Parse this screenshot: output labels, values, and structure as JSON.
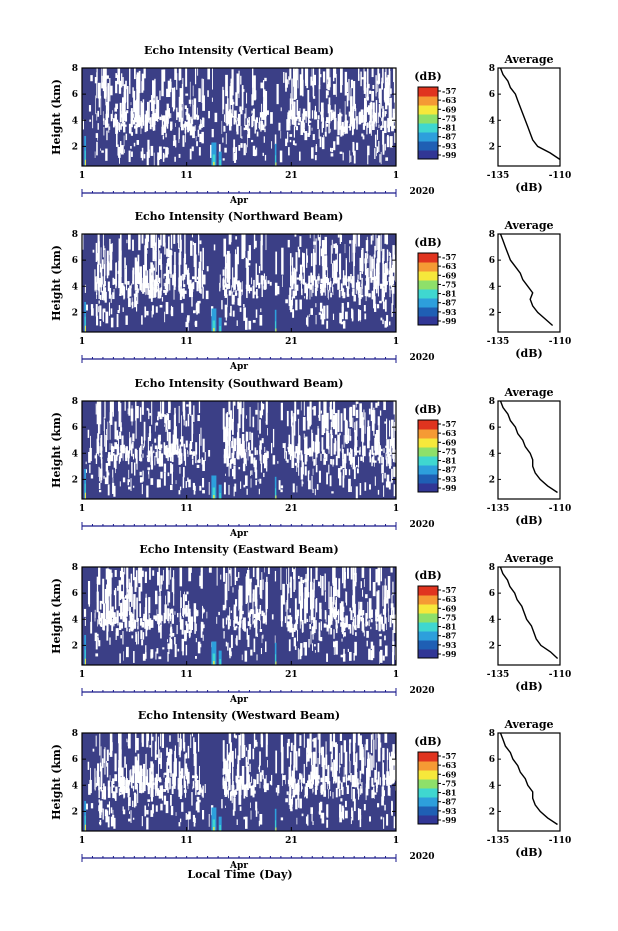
{
  "figure": {
    "xlabel": "Local Time (Day)",
    "x_ticks": [
      "1",
      "11",
      "21",
      "1"
    ],
    "month_label": "Apr",
    "year_label": "2020",
    "y_ticks": [
      "2",
      "4",
      "6",
      "8"
    ],
    "ylabel": "Height (km)",
    "colorbar_unit": "(dB)",
    "colorbar_ticks": [
      "-57",
      "-63",
      "-69",
      "-75",
      "-81",
      "-87",
      "-93",
      "-99"
    ],
    "colorbar_colors": [
      "#313695",
      "#1f5fb4",
      "#2d9fdc",
      "#3fd7d0",
      "#8ee06a",
      "#f6e83b",
      "#f59a34",
      "#e0341f"
    ],
    "background_color": "#3b3f86",
    "avg_title": "Average",
    "avg_xticks": [
      "-135",
      "-110"
    ],
    "avg_xlabel": "(dB)"
  },
  "chart_data": [
    {
      "type": "heatmap",
      "title": "Echo Intensity (Vertical Beam)",
      "ylabel": "Height (km)",
      "ylim": [
        0.5,
        8
      ],
      "xlim_days": [
        1,
        31
      ],
      "clim": [
        -99,
        -57
      ],
      "average_profile": {
        "type": "line",
        "title": "Average",
        "xlabel": "(dB)",
        "xlim": [
          -135,
          -110
        ],
        "ylim": [
          0.5,
          8
        ],
        "heights_km": [
          1,
          1.5,
          2,
          2.5,
          3,
          3.5,
          4,
          4.5,
          5,
          5.5,
          6,
          6.5,
          7,
          7.5,
          8
        ],
        "intensity_db": [
          -110,
          -114,
          -119,
          -121,
          -122,
          -123,
          -124,
          -125,
          -126,
          -127,
          -128,
          -130,
          -131,
          -133,
          -134
        ]
      }
    },
    {
      "type": "heatmap",
      "title": "Echo Intensity (Northward Beam)",
      "ylabel": "Height (km)",
      "ylim": [
        0.5,
        8
      ],
      "xlim_days": [
        1,
        31
      ],
      "clim": [
        -99,
        -57
      ],
      "average_profile": {
        "type": "line",
        "title": "Average",
        "xlabel": "(dB)",
        "xlim": [
          -135,
          -110
        ],
        "ylim": [
          0.5,
          8
        ],
        "heights_km": [
          1,
          1.5,
          2,
          2.5,
          3,
          3.5,
          4,
          4.5,
          5,
          5.5,
          6,
          6.5,
          7,
          7.5,
          8
        ],
        "intensity_db": [
          -113,
          -116,
          -119,
          -121,
          -122,
          -121,
          -123,
          -125,
          -126,
          -128,
          -130,
          -131,
          -132,
          -133,
          -134
        ]
      }
    },
    {
      "type": "heatmap",
      "title": "Echo Intensity (Southward Beam)",
      "ylabel": "Height (km)",
      "ylim": [
        0.5,
        8
      ],
      "xlim_days": [
        1,
        31
      ],
      "clim": [
        -99,
        -57
      ],
      "average_profile": {
        "type": "line",
        "title": "Average",
        "xlabel": "(dB)",
        "xlim": [
          -135,
          -110
        ],
        "ylim": [
          0.5,
          8
        ],
        "heights_km": [
          1,
          1.5,
          2,
          2.5,
          3,
          3.5,
          4,
          4.5,
          5,
          5.5,
          6,
          6.5,
          7,
          7.5,
          8
        ],
        "intensity_db": [
          -111,
          -115,
          -118,
          -120,
          -121,
          -121,
          -122,
          -124,
          -125,
          -127,
          -128,
          -130,
          -131,
          -133,
          -134
        ]
      }
    },
    {
      "type": "heatmap",
      "title": "Echo Intensity (Eastward Beam)",
      "ylabel": "Height (km)",
      "ylim": [
        0.5,
        8
      ],
      "xlim_days": [
        1,
        31
      ],
      "clim": [
        -99,
        -57
      ],
      "average_profile": {
        "type": "line",
        "title": "Average",
        "xlabel": "(dB)",
        "xlim": [
          -136,
          -110
        ],
        "ylim": [
          0.5,
          8
        ],
        "heights_km": [
          1,
          1.5,
          2,
          2.5,
          3,
          3.5,
          4,
          4.5,
          5,
          5.5,
          6,
          6.5,
          7,
          7.5,
          8
        ],
        "intensity_db": [
          -111,
          -114,
          -118,
          -120,
          -121,
          -122,
          -124,
          -125,
          -126,
          -128,
          -129,
          -131,
          -132,
          -134,
          -135
        ]
      }
    },
    {
      "type": "heatmap",
      "title": "Echo Intensity (Westward Beam)",
      "ylabel": "Height (km)",
      "ylim": [
        0.5,
        8
      ],
      "xlim_days": [
        1,
        31
      ],
      "clim": [
        -99,
        -57
      ],
      "average_profile": {
        "type": "line",
        "title": "Average",
        "xlabel": "(dB)",
        "xlim": [
          -135,
          -110
        ],
        "ylim": [
          0.5,
          8
        ],
        "heights_km": [
          1,
          1.5,
          2,
          2.5,
          3,
          3.5,
          4,
          4.5,
          5,
          5.5,
          6,
          6.5,
          7,
          7.5,
          8
        ],
        "intensity_db": [
          -111,
          -115,
          -118,
          -120,
          -121,
          -121,
          -123,
          -124,
          -126,
          -127,
          -129,
          -130,
          -132,
          -133,
          -134
        ]
      }
    }
  ]
}
